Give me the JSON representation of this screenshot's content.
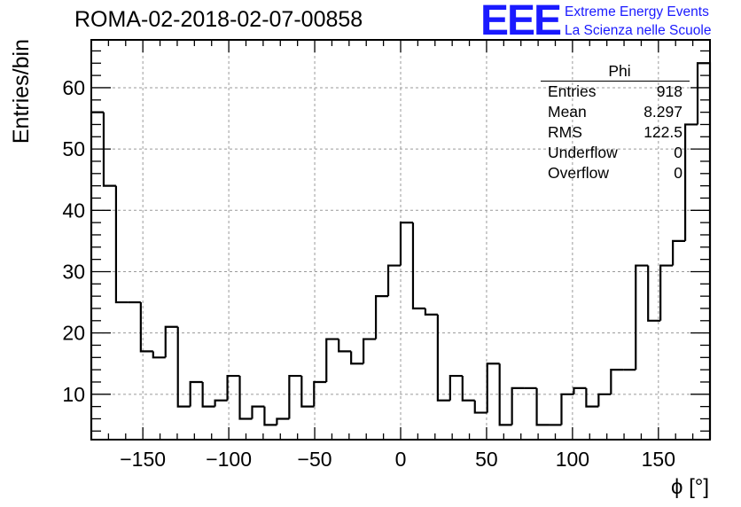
{
  "title": "ROMA-02-2018-02-07-00858",
  "logo": {
    "mark": "EEE",
    "line1": "Extreme Energy Events",
    "line2": "La Scienza nelle Scuole",
    "color": "#1a1aff"
  },
  "stats": {
    "name": "Phi",
    "rows": [
      {
        "label": "Entries",
        "value": "918"
      },
      {
        "label": "Mean",
        "value": "8.297"
      },
      {
        "label": "RMS",
        "value": "122.5"
      },
      {
        "label": "Underflow",
        "value": "0"
      },
      {
        "label": "Overflow",
        "value": "0"
      }
    ]
  },
  "chart_data": {
    "type": "bar",
    "style": "step-histogram",
    "title": "ROMA-02-2018-02-07-00858",
    "xlabel": "ϕ [°]",
    "ylabel": "Entries/bin",
    "xlim": [
      -180,
      180
    ],
    "ylim": [
      2.6,
      67.8
    ],
    "bin_width": 7.2,
    "values": [
      56,
      44,
      25,
      25,
      17,
      16,
      21,
      8,
      12,
      8,
      9,
      13,
      6,
      8,
      5,
      6,
      13,
      8,
      12,
      19,
      17,
      15,
      19,
      26,
      31,
      38,
      24,
      23,
      9,
      13,
      9,
      7,
      15,
      5,
      11,
      11,
      5,
      5,
      10,
      11,
      8,
      10,
      14,
      14,
      31,
      22,
      31,
      35,
      54,
      64
    ],
    "xticks": [
      -150,
      -100,
      -50,
      0,
      50,
      100,
      150
    ],
    "yticks": [
      10,
      20,
      30,
      40,
      50,
      60
    ],
    "grid": true,
    "line_color": "#000000"
  }
}
